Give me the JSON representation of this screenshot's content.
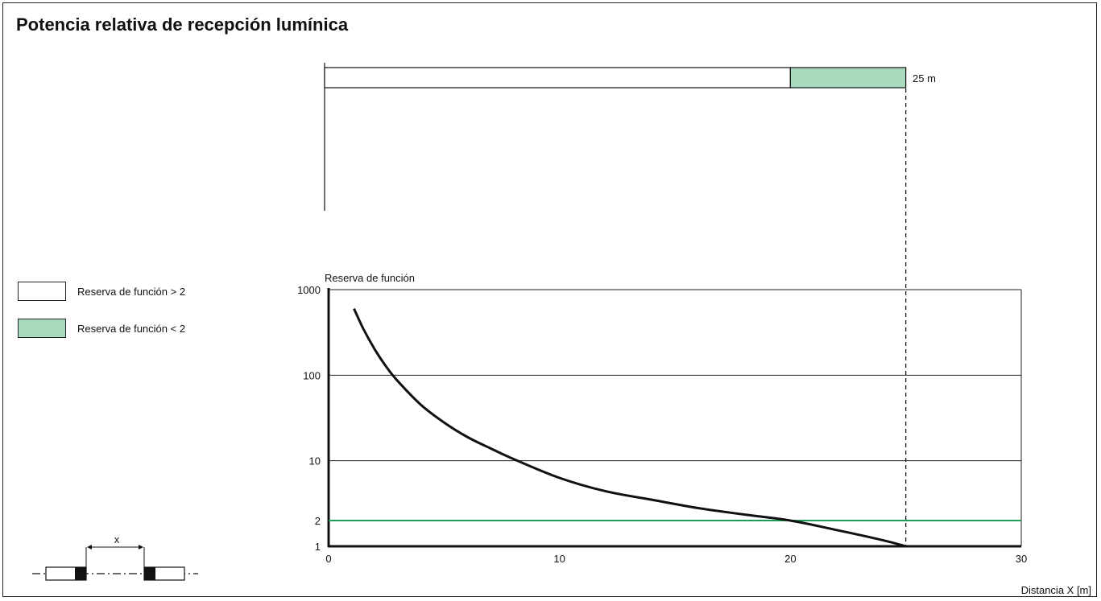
{
  "title": "Potencia relativa de recepción lumínica",
  "colors": {
    "green_fill": "#a8dbbd",
    "threshold_line": "#1a9e5a",
    "curve": "#111111"
  },
  "legend": [
    {
      "label": "Reserva de función > 2",
      "color": "#ffffff"
    },
    {
      "label": "Reserva de función < 2",
      "color": "#a8dbbd"
    }
  ],
  "range_bar": {
    "label": "25 m",
    "reserve_gt2_until": 20,
    "reserve_lt2_until": 25
  },
  "diagram": {
    "distance_label": "x",
    "icons": [
      "emitter-icon",
      "receiver-icon"
    ]
  },
  "chart_data": {
    "type": "line",
    "title": "Potencia relativa de recepción lumínica",
    "ylabel": "Reserva de función",
    "xlabel": "Distancia X [m]",
    "xlim": [
      0,
      30
    ],
    "ylim": [
      1,
      1000
    ],
    "yscale": "log",
    "xticks": [
      0,
      10,
      20,
      30
    ],
    "yticks": [
      1,
      2,
      10,
      100,
      1000
    ],
    "grid": "horizontal at 10, 100, 1000",
    "series": [
      {
        "x": [
          1.1,
          1.5,
          2,
          2.5,
          3,
          4,
          5,
          6,
          7,
          8,
          10,
          12,
          14,
          16,
          18,
          20,
          22,
          24,
          25
        ],
        "values": [
          600,
          350,
          200,
          125,
          85,
          45,
          28,
          19,
          14,
          10.5,
          6.3,
          4.4,
          3.5,
          2.8,
          2.35,
          2.0,
          1.55,
          1.18,
          1.0
        ]
      }
    ],
    "reference_lines": [
      {
        "axis": "y",
        "value": 2
      },
      {
        "axis": "x",
        "value": 25
      }
    ]
  }
}
